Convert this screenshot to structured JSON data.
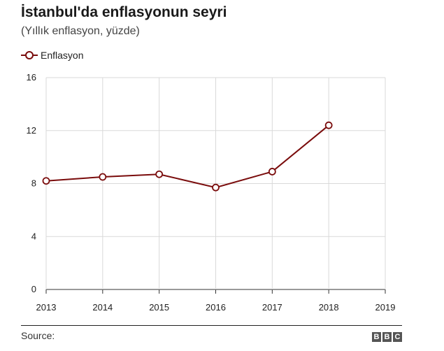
{
  "chart_data": {
    "type": "line",
    "title": "İstanbul'da enflasyonun seyri",
    "subtitle": "(Yıllık enflasyon, yüzde)",
    "x": [
      2013,
      2014,
      2015,
      2016,
      2017,
      2018
    ],
    "xlim": [
      2013,
      2019
    ],
    "x_ticks": [
      "2013",
      "2014",
      "2015",
      "2016",
      "2017",
      "2018",
      "2019"
    ],
    "ylim": [
      0,
      16
    ],
    "y_ticks": [
      "0",
      "4",
      "8",
      "12",
      "16"
    ],
    "series": [
      {
        "name": "Enflasyon",
        "values": [
          8.2,
          8.5,
          8.7,
          7.7,
          8.9,
          12.4
        ],
        "color": "#7a0c0c"
      }
    ],
    "grid": true,
    "legend_position": "top-left"
  },
  "footer": {
    "source_label": "Source:",
    "logo_letters": [
      "B",
      "B",
      "C"
    ]
  }
}
